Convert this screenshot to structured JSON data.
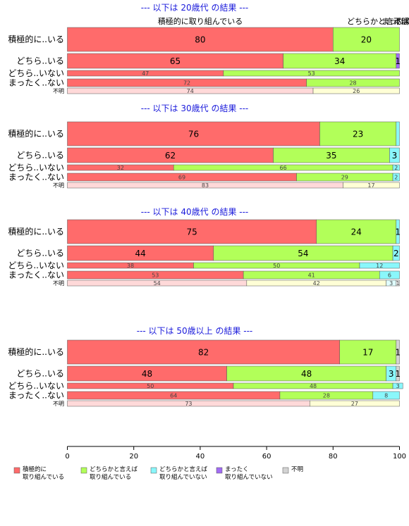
{
  "chart_data": {
    "type": "bar",
    "orientation": "horizontal",
    "stacked": true,
    "xlim": [
      0,
      100
    ],
    "xticks": [
      "0",
      "20",
      "40",
      "60",
      "80",
      "100"
    ],
    "categories": [
      "積極的に..いる",
      "どちら..いる",
      "どちら..いない",
      "まったく..ない",
      "不明"
    ],
    "legend": [
      {
        "name": "積極的に\n取り組んでいる",
        "color": "#ff6b6b"
      },
      {
        "name": "どちらかと言えば\n取り組んでいる",
        "color": "#b2ff59"
      },
      {
        "name": "どちらかと言えば\n取り組んでいない",
        "color": "#8af7fb"
      },
      {
        "name": "まったく\n取り組んでいない",
        "color": "#a26cf4"
      },
      {
        "name": "不明",
        "color": "#d3d3d3"
      }
    ],
    "legend_position": "bottom",
    "top_headers": [
      "積極的に取り組んでいる",
      "どちらかと言えば",
      "まったく",
      "不明"
    ],
    "panels": [
      {
        "title": "--- 以下は 20歳代 の結果 ---",
        "rows": [
          {
            "values": [
              80,
              20,
              0,
              0,
              0
            ],
            "labels": [
              "80",
              "20",
              "",
              "",
              ""
            ]
          },
          {
            "values": [
              65,
              34,
              0,
              1,
              0
            ],
            "labels": [
              "65",
              "34",
              "",
              "1",
              ""
            ]
          },
          {
            "values": [
              47,
              53,
              0,
              0,
              0
            ],
            "labels": [
              "47",
              "53",
              "",
              "",
              ""
            ]
          },
          {
            "values": [
              72,
              28,
              0,
              0,
              0
            ],
            "labels": [
              "72",
              "28",
              "",
              "",
              ""
            ]
          },
          {
            "values": [
              74,
              26,
              0,
              0,
              0
            ],
            "labels": [
              "74",
              "26",
              "",
              "",
              ""
            ]
          }
        ]
      },
      {
        "title": "--- 以下は 30歳代 の結果 ---",
        "rows": [
          {
            "values": [
              76,
              23,
              1,
              0,
              0
            ],
            "labels": [
              "76",
              "23",
              "",
              "",
              ""
            ]
          },
          {
            "values": [
              62,
              35,
              3,
              0,
              0
            ],
            "labels": [
              "62",
              "35",
              "3",
              "",
              ""
            ]
          },
          {
            "values": [
              32,
              66,
              2,
              0,
              0
            ],
            "labels": [
              "32",
              "66",
              "2",
              "",
              ""
            ]
          },
          {
            "values": [
              69,
              29,
              2,
              0,
              0
            ],
            "labels": [
              "69",
              "29",
              "2",
              "",
              ""
            ]
          },
          {
            "values": [
              83,
              17,
              0,
              0,
              0
            ],
            "labels": [
              "83",
              "17",
              "",
              "",
              ""
            ]
          }
        ]
      },
      {
        "title": "--- 以下は 40歳代 の結果 ---",
        "rows": [
          {
            "values": [
              75,
              24,
              1,
              0,
              0
            ],
            "labels": [
              "75",
              "24",
              "1",
              "",
              ""
            ]
          },
          {
            "values": [
              44,
              54,
              2,
              0,
              0
            ],
            "labels": [
              "44",
              "54",
              "2",
              "",
              ""
            ]
          },
          {
            "values": [
              38,
              50,
              12,
              0,
              0
            ],
            "labels": [
              "38",
              "50",
              "12",
              "",
              ""
            ]
          },
          {
            "values": [
              53,
              41,
              6,
              0,
              0
            ],
            "labels": [
              "53",
              "41",
              "6",
              "",
              ""
            ]
          },
          {
            "values": [
              54,
              42,
              3,
              0,
              1
            ],
            "labels": [
              "54",
              "42",
              "3",
              "",
              "1"
            ]
          }
        ]
      },
      {
        "title": "--- 以下は 50歳以上 の結果 ---",
        "rows": [
          {
            "values": [
              82,
              17,
              0,
              0,
              1
            ],
            "labels": [
              "82",
              "17",
              "",
              "",
              "1"
            ]
          },
          {
            "values": [
              48,
              48,
              3,
              0,
              1
            ],
            "labels": [
              "48",
              "48",
              "3",
              "",
              "1"
            ]
          },
          {
            "values": [
              50,
              48,
              3,
              0,
              0
            ],
            "labels": [
              "50",
              "48",
              "3",
              "",
              ""
            ]
          },
          {
            "values": [
              64,
              28,
              8,
              0,
              0
            ],
            "labels": [
              "64",
              "28",
              "8",
              "",
              ""
            ]
          },
          {
            "values": [
              73,
              27,
              0,
              0,
              0
            ],
            "labels": [
              "73",
              "27",
              "",
              "",
              ""
            ]
          }
        ]
      }
    ],
    "colors": {
      "main": [
        "#ff6b6b",
        "#b2ff59",
        "#8af7fb",
        "#a26cf4",
        "#d3d3d3"
      ],
      "unknown_row": [
        "#ffd9d9",
        "#ffffd6",
        "#e0ffff",
        "#e8dcff",
        "#eeeeee"
      ],
      "title": "#1a1adb"
    }
  }
}
